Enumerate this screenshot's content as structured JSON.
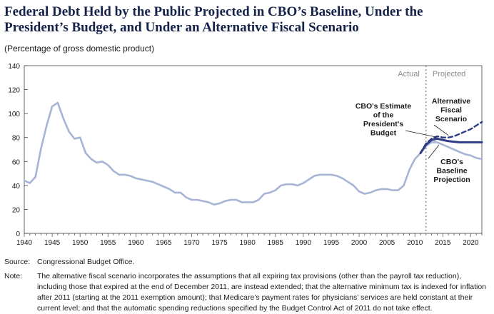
{
  "title": "Federal Debt Held by the Public Projected in CBO’s Baseline, Under the President’s Budget, and Under an Alternative Fiscal Scenario",
  "subtitle": "(Percentage of gross domestic product)",
  "source_label": "Source:",
  "source_text": "Congressional Budget Office.",
  "note_label": "Note:",
  "note_text": "The alternative fiscal scenario incorporates the assumptions that all expiring tax provisions (other than the payroll tax reduction), including those that expired at the end of December 2011, are instead extended; that the alternative minimum tax is indexed for inflation after 2011 (starting at the 2011 exemption amount); that Medicare’s payment rates for physicians’ services are held constant at their current level; and that the automatic spending reductions specified by the Budget Control Act of 2011 do not take effect.",
  "colors": {
    "historical": "#a8b4d6",
    "president": "#2e3c86",
    "alternative": "#2e3c86",
    "title": "#15224a",
    "axis_text": "#1b1b1b",
    "divider_text": "#8a8a8a"
  },
  "chart_data": {
    "type": "line",
    "title": "Federal Debt Held by the Public Projected in CBO’s Baseline, Under the President’s Budget, and Under an Alternative Fiscal Scenario",
    "ylabel": "(Percentage of gross domestic product)",
    "xlabel": "",
    "xlim": [
      1940,
      2022
    ],
    "ylim": [
      0,
      140
    ],
    "x_ticks": [
      1940,
      1945,
      1950,
      1955,
      1960,
      1965,
      1970,
      1975,
      1980,
      1985,
      1990,
      1995,
      2000,
      2005,
      2010,
      2015,
      2020
    ],
    "y_ticks": [
      0,
      20,
      40,
      60,
      80,
      100,
      120,
      140
    ],
    "grid": false,
    "divider": {
      "x": 2012,
      "left_label": "Actual",
      "right_label": "Projected"
    },
    "series": [
      {
        "name": "CBO's Baseline Projection",
        "label": "CBO's Baseline Projection",
        "style": "solid",
        "x": [
          1940,
          1941,
          1942,
          1943,
          1944,
          1945,
          1946,
          1947,
          1948,
          1949,
          1950,
          1951,
          1952,
          1953,
          1954,
          1955,
          1956,
          1957,
          1958,
          1959,
          1960,
          1961,
          1962,
          1963,
          1964,
          1965,
          1966,
          1967,
          1968,
          1969,
          1970,
          1971,
          1972,
          1973,
          1974,
          1975,
          1976,
          1977,
          1978,
          1979,
          1980,
          1981,
          1982,
          1983,
          1984,
          1985,
          1986,
          1987,
          1988,
          1989,
          1990,
          1991,
          1992,
          1993,
          1994,
          1995,
          1996,
          1997,
          1998,
          1999,
          2000,
          2001,
          2002,
          2003,
          2004,
          2005,
          2006,
          2007,
          2008,
          2009,
          2010,
          2011,
          2012,
          2013,
          2014,
          2015,
          2016,
          2017,
          2018,
          2019,
          2020,
          2021,
          2022
        ],
        "values": [
          44,
          42,
          47,
          71,
          90,
          106,
          109,
          96,
          85,
          79,
          80,
          67,
          62,
          59,
          60,
          57,
          52,
          49,
          49,
          48,
          46,
          45,
          44,
          43,
          41,
          39,
          37,
          34,
          34,
          30,
          28,
          28,
          27,
          26,
          24,
          25,
          27,
          28,
          28,
          26,
          26,
          26,
          28,
          33,
          34,
          36,
          40,
          41,
          41,
          40,
          42,
          45,
          48,
          49,
          49,
          49,
          48,
          46,
          43,
          40,
          35,
          33,
          34,
          36,
          37,
          37,
          36,
          36,
          40,
          53,
          62,
          67,
          73,
          76,
          76,
          74,
          72,
          70,
          68,
          66,
          65,
          63,
          62
        ]
      },
      {
        "name": "CBO's Estimate of the President's Budget",
        "label": "CBO's Estimate of the President's Budget",
        "style": "solid",
        "x": [
          2011,
          2012,
          2013,
          2014,
          2015,
          2016,
          2017,
          2018,
          2019,
          2020,
          2021,
          2022
        ],
        "values": [
          67,
          74,
          78,
          79,
          78,
          77,
          76.5,
          76,
          76,
          76,
          76,
          76
        ]
      },
      {
        "name": "Alternative Fiscal Scenario",
        "label": "Alternative Fiscal Scenario",
        "style": "dashed",
        "x": [
          2011,
          2012,
          2013,
          2014,
          2015,
          2016,
          2017,
          2018,
          2019,
          2020,
          2021,
          2022
        ],
        "values": [
          67,
          75,
          79,
          81,
          80,
          80,
          81,
          83,
          85,
          87,
          90,
          93
        ]
      }
    ],
    "annotations": [
      {
        "lines": [
          "CBO's Estimate",
          "of the",
          "President's",
          "Budget"
        ],
        "series": "CBO's Estimate of the President's Budget"
      },
      {
        "lines": [
          "Alternative",
          "Fiscal",
          "Scenario"
        ],
        "series": "Alternative Fiscal Scenario"
      },
      {
        "lines": [
          "CBO's",
          "Baseline",
          "Projection"
        ],
        "series": "CBO's Baseline Projection"
      }
    ]
  }
}
